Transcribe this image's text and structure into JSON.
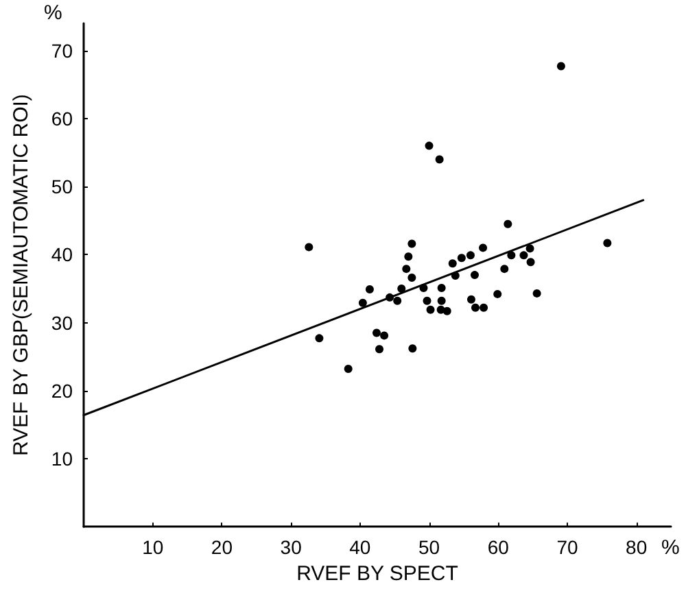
{
  "chart_data": {
    "type": "scatter",
    "xlabel": "RVEF BY SPECT",
    "ylabel": "RVEF BY GBP(SEMIAUTOMATIC ROI)",
    "annotations": [
      "%",
      "%"
    ],
    "xlim": [
      0,
      85
    ],
    "ylim": [
      0,
      74
    ],
    "xticks": [
      10,
      20,
      30,
      40,
      50,
      60,
      70,
      80
    ],
    "yticks": [
      10,
      20,
      30,
      40,
      50,
      60,
      70
    ],
    "grid": false,
    "marker": "circle",
    "series": [
      {
        "color": "#000000",
        "x": [
          69.1,
          50.0,
          51.5,
          61.4,
          75.8,
          32.6,
          47.5,
          47.0,
          57.8,
          64.6,
          61.9,
          63.7,
          64.7,
          54.7,
          56.0,
          53.4,
          60.9,
          46.7,
          47.5,
          53.8,
          56.6,
          41.4,
          46.0,
          49.2,
          51.8,
          59.9,
          65.6,
          40.4,
          44.3,
          45.4,
          49.7,
          50.2,
          51.7,
          51.8,
          52.6,
          56.1,
          56.7,
          57.9,
          34.1,
          42.4,
          43.5,
          42.8,
          47.6,
          38.3
        ],
        "values": [
          67.7,
          56.0,
          54.0,
          44.5,
          41.7,
          41.1,
          41.6,
          39.7,
          41.0,
          40.9,
          39.9,
          39.9,
          38.9,
          39.5,
          39.9,
          38.7,
          37.9,
          37.9,
          36.6,
          36.9,
          37.0,
          34.9,
          35.0,
          35.1,
          35.1,
          34.2,
          34.3,
          32.9,
          33.7,
          33.2,
          33.2,
          31.9,
          31.9,
          33.2,
          31.7,
          33.4,
          32.2,
          32.2,
          27.7,
          28.5,
          28.1,
          26.1,
          26.2,
          23.2
        ]
      },
      {
        "type": "line",
        "color": "#000000",
        "marker": "none",
        "line_style": "solid",
        "x": [
          0,
          81
        ],
        "values": [
          16.4,
          48.0
        ]
      }
    ]
  }
}
